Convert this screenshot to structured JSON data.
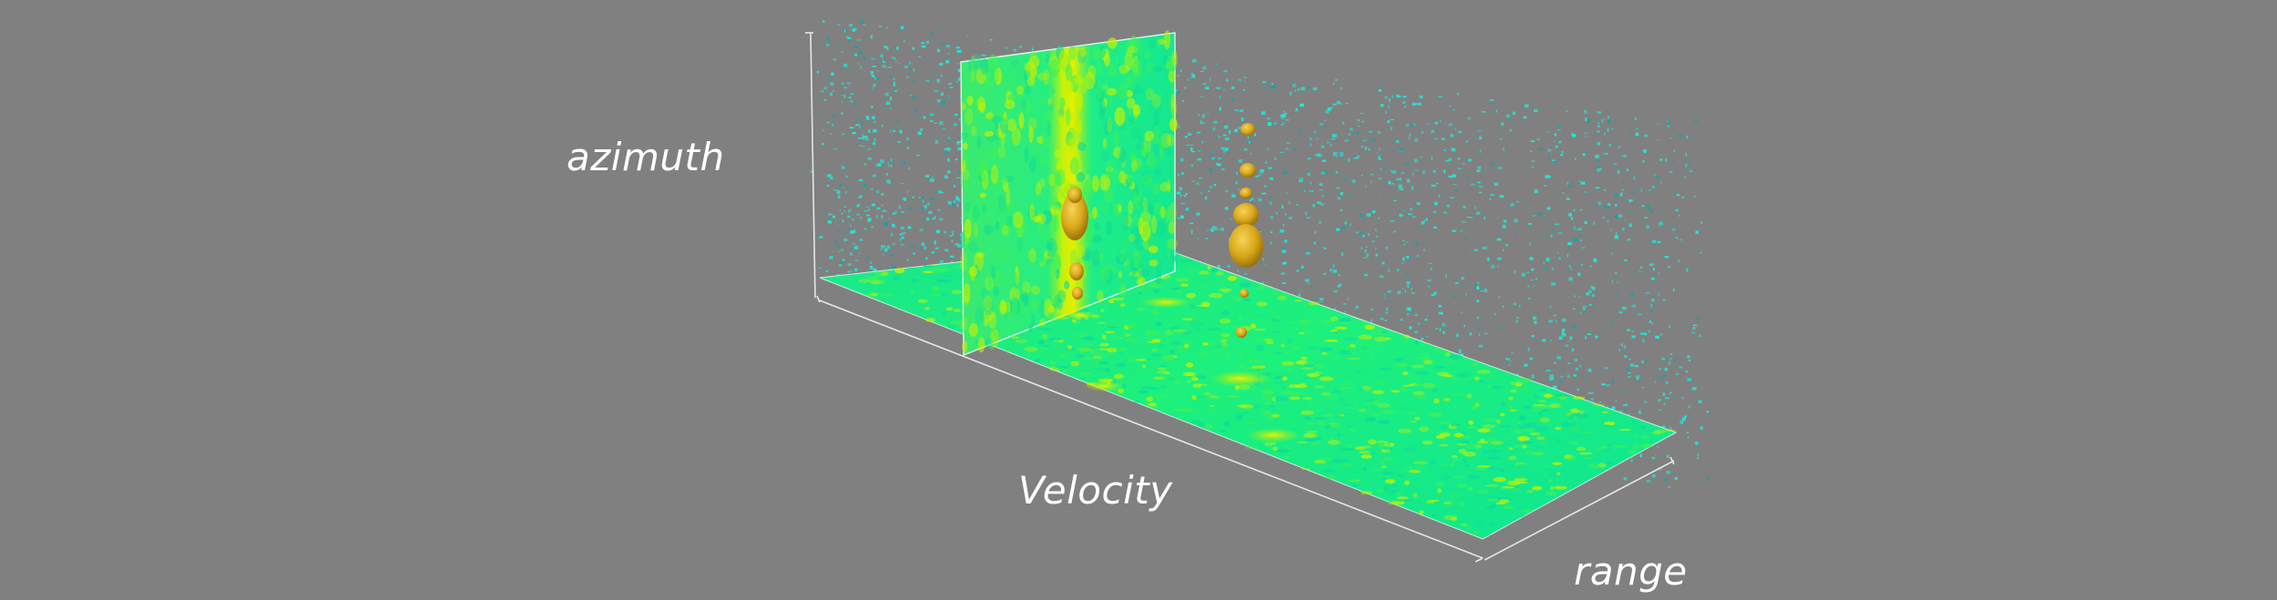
{
  "scene": {
    "axes": {
      "vertical_label": "azimuth",
      "depth_label": "Velocity",
      "horizontal_label": "range"
    },
    "colors": {
      "background": "#808080",
      "slice_low": "#00f07a",
      "slice_mid": "#3ef05a",
      "slice_high": "#c8f000",
      "isosurface_noise": "#22e6d8",
      "isosurface_target": "#d9a81a",
      "axis_line": "#e6e6e6"
    }
  }
}
